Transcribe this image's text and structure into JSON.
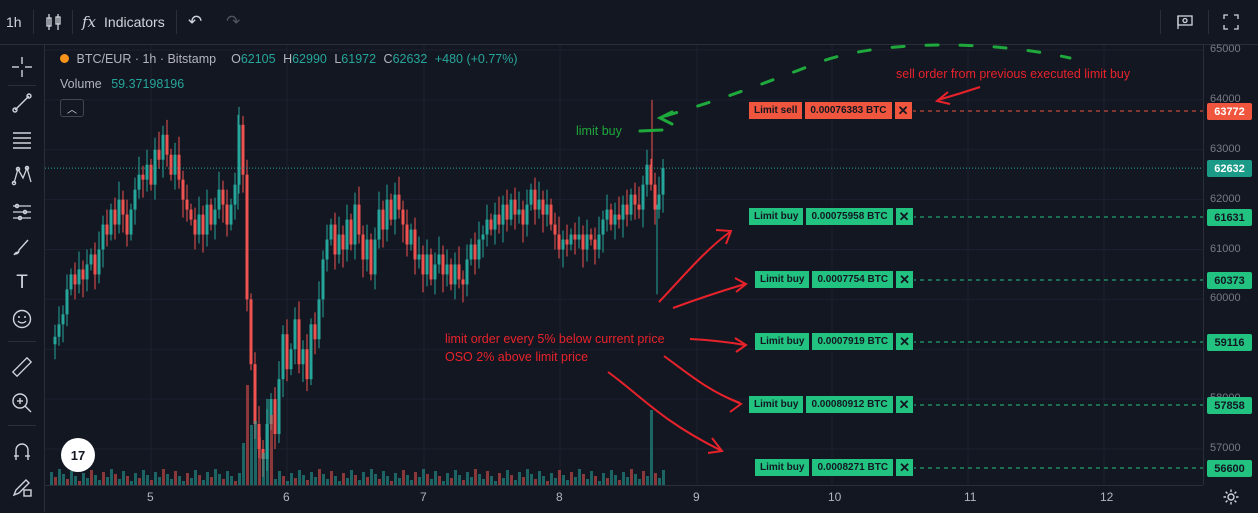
{
  "toolbar": {
    "interval": "1h",
    "indicators_label": "Indicators"
  },
  "legend": {
    "symbol": "BTC/EUR · 1h · Bitstamp",
    "open_label": "O",
    "open": "62105",
    "high_label": "H",
    "high": "62990",
    "low_label": "L",
    "low": "61972",
    "close_label": "C",
    "close": "62632",
    "change": "+480 (+0.77%)",
    "volume_label": "Volume",
    "volume": "59.37198196"
  },
  "price_axis": [
    "65000",
    "64000",
    "63000",
    "62000",
    "61000",
    "60000",
    "59000",
    "58000",
    "57000"
  ],
  "date_axis": [
    "5",
    "6",
    "7",
    "8",
    "9",
    "10",
    "11",
    "12"
  ],
  "orders": [
    {
      "side": "sell",
      "label": "Limit sell",
      "qty": "0.00076383 BTC",
      "price": "63772"
    },
    {
      "side": "buy",
      "label": "Limit buy",
      "qty": "0.00075958 BTC",
      "price": "61631"
    },
    {
      "side": "buy",
      "label": "Limit buy",
      "qty": "0.0007754 BTC",
      "price": "60373"
    },
    {
      "side": "buy",
      "label": "Limit buy",
      "qty": "0.0007919 BTC",
      "price": "59116"
    },
    {
      "side": "buy",
      "label": "Limit buy",
      "qty": "0.00080912 BTC",
      "price": "57858"
    },
    {
      "side": "buy",
      "label": "Limit buy",
      "qty": "0.0008271 BTC",
      "price": "56600"
    }
  ],
  "current_price": "62632",
  "annotations": {
    "sell_note": "sell order from previous executed limit buy",
    "limit_buy_note": "limit buy",
    "grid_note_line1": "limit order every 5% below current price",
    "grid_note_line2": "OSO 2% above limit price"
  },
  "logo_text": "17",
  "colors": {
    "up": "#26a69a",
    "down": "#ef5350",
    "buy": "#22c380",
    "sell": "#f0553d",
    "annotation_red": "#e8222b",
    "annotation_green": "#1fa83b"
  }
}
